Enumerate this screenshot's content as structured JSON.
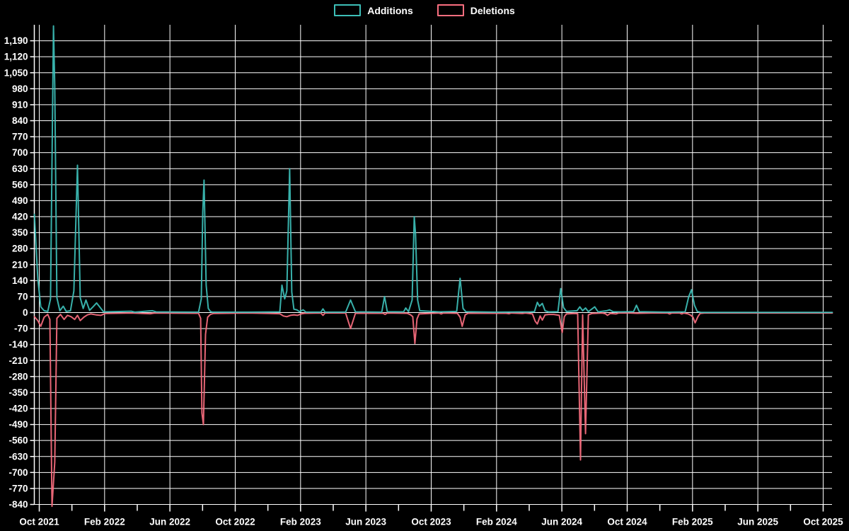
{
  "legend": {
    "items": [
      {
        "label": "Additions",
        "color": "#3dbfb8"
      },
      {
        "label": "Deletions",
        "color": "#fa6e7f"
      }
    ]
  },
  "chart_data": {
    "type": "line",
    "title": "",
    "xlabel": "",
    "ylabel": "",
    "background_color": "#000000",
    "grid": true,
    "grid_color": "#ffffff",
    "text_color": "#ffffff",
    "legend_position": "top-center",
    "x_axis": {
      "unit": "months since Oct 2021",
      "tick_labels": [
        "Oct 2021",
        "Feb 2022",
        "Jun 2022",
        "Oct 2022",
        "Feb 2023",
        "Jun 2023",
        "Oct 2023",
        "Feb 2024",
        "Jun 2024",
        "Oct 2024",
        "Feb 2025",
        "Jun 2025",
        "Oct 2025"
      ],
      "tick_positions": [
        0,
        4,
        8,
        12,
        16,
        20,
        24,
        28,
        32,
        36,
        40,
        44,
        48
      ],
      "minor_tick_positions": [
        2,
        6,
        10,
        14,
        18,
        22,
        26,
        30,
        34,
        38,
        42,
        46
      ],
      "range": [
        -0.32,
        48.56
      ]
    },
    "y_axis": {
      "range": [
        -840,
        1260
      ],
      "tick_min": -840,
      "tick_max": 1190,
      "tick_step": 70
    },
    "series": [
      {
        "name": "Additions",
        "color": "#3dbfb8",
        "points": [
          [
            -0.3,
            430
          ],
          [
            -0.09,
            150
          ],
          [
            0.09,
            25
          ],
          [
            0.3,
            8
          ],
          [
            0.52,
            5
          ],
          [
            0.69,
            60
          ],
          [
            0.87,
            1255
          ],
          [
            0.95,
            990
          ],
          [
            1.08,
            65
          ],
          [
            1.26,
            8
          ],
          [
            1.47,
            28
          ],
          [
            1.65,
            5
          ],
          [
            1.91,
            8
          ],
          [
            2.12,
            95
          ],
          [
            2.34,
            645
          ],
          [
            2.51,
            65
          ],
          [
            2.69,
            18
          ],
          [
            2.86,
            55
          ],
          [
            3.08,
            10
          ],
          [
            3.29,
            25
          ],
          [
            3.51,
            42
          ],
          [
            3.73,
            22
          ],
          [
            3.94,
            3
          ],
          [
            5.63,
            6
          ],
          [
            5.85,
            2
          ],
          [
            6.71,
            7
          ],
          [
            6.93,
            8
          ],
          [
            7.15,
            3
          ],
          [
            9.75,
            2
          ],
          [
            9.92,
            60
          ],
          [
            10.01,
            440
          ],
          [
            10.09,
            580
          ],
          [
            10.22,
            120
          ],
          [
            10.35,
            18
          ],
          [
            10.48,
            5
          ],
          [
            10.61,
            2
          ],
          [
            12.78,
            2
          ],
          [
            14.73,
            3
          ],
          [
            14.86,
            120
          ],
          [
            15.03,
            60
          ],
          [
            15.16,
            95
          ],
          [
            15.33,
            630
          ],
          [
            15.46,
            90
          ],
          [
            15.59,
            15
          ],
          [
            15.77,
            12
          ],
          [
            15.94,
            4
          ],
          [
            16.16,
            12
          ],
          [
            16.33,
            2
          ],
          [
            17.24,
            2
          ],
          [
            17.37,
            16
          ],
          [
            17.5,
            2
          ],
          [
            18.76,
            2
          ],
          [
            19.06,
            55
          ],
          [
            19.36,
            3
          ],
          [
            20.97,
            2
          ],
          [
            21.14,
            70
          ],
          [
            21.31,
            4
          ],
          [
            22.31,
            3
          ],
          [
            22.44,
            20
          ],
          [
            22.61,
            4
          ],
          [
            22.83,
            55
          ],
          [
            22.96,
            420
          ],
          [
            23.04,
            345
          ],
          [
            23.17,
            55
          ],
          [
            23.3,
            8
          ],
          [
            24.48,
            3
          ],
          [
            25.56,
            5
          ],
          [
            25.77,
            150
          ],
          [
            25.95,
            18
          ],
          [
            26.12,
            4
          ],
          [
            27.94,
            2
          ],
          [
            30.11,
            3
          ],
          [
            30.32,
            4
          ],
          [
            30.5,
            45
          ],
          [
            30.63,
            28
          ],
          [
            30.8,
            40
          ],
          [
            30.97,
            8
          ],
          [
            31.19,
            3
          ],
          [
            31.76,
            4
          ],
          [
            31.93,
            105
          ],
          [
            32.1,
            22
          ],
          [
            32.28,
            5
          ],
          [
            32.93,
            8
          ],
          [
            33.1,
            25
          ],
          [
            33.27,
            8
          ],
          [
            33.45,
            20
          ],
          [
            33.62,
            4
          ],
          [
            34.01,
            25
          ],
          [
            34.22,
            3
          ],
          [
            34.75,
            8
          ],
          [
            34.92,
            12
          ],
          [
            35.14,
            4
          ],
          [
            35.61,
            3
          ],
          [
            36.39,
            4
          ],
          [
            36.57,
            32
          ],
          [
            36.74,
            4
          ],
          [
            38.34,
            2
          ],
          [
            39.55,
            3
          ],
          [
            39.77,
            70
          ],
          [
            39.94,
            100
          ],
          [
            40.12,
            32
          ],
          [
            40.29,
            5
          ],
          [
            40.51,
            1
          ],
          [
            48.56,
            1
          ]
        ]
      },
      {
        "name": "Deletions",
        "color": "#fa6e7f",
        "points": [
          [
            -0.3,
            -18
          ],
          [
            -0.09,
            -35
          ],
          [
            0.09,
            -60
          ],
          [
            0.3,
            -20
          ],
          [
            0.52,
            -8
          ],
          [
            0.65,
            -30
          ],
          [
            0.78,
            -848
          ],
          [
            0.95,
            -655
          ],
          [
            1.08,
            -25
          ],
          [
            1.3,
            -8
          ],
          [
            1.52,
            -30
          ],
          [
            1.73,
            -12
          ],
          [
            1.95,
            -18
          ],
          [
            2.17,
            -30
          ],
          [
            2.34,
            -12
          ],
          [
            2.51,
            -35
          ],
          [
            2.73,
            -20
          ],
          [
            2.95,
            -10
          ],
          [
            3.16,
            -6
          ],
          [
            3.47,
            -10
          ],
          [
            3.77,
            -12
          ],
          [
            4.03,
            -4
          ],
          [
            5.63,
            -2
          ],
          [
            6.8,
            -5
          ],
          [
            7.06,
            -2
          ],
          [
            9.75,
            -3
          ],
          [
            9.88,
            -25
          ],
          [
            9.96,
            -440
          ],
          [
            10.05,
            -490
          ],
          [
            10.18,
            -95
          ],
          [
            10.31,
            -20
          ],
          [
            10.48,
            -8
          ],
          [
            10.66,
            -4
          ],
          [
            12.78,
            -2
          ],
          [
            14.73,
            -5
          ],
          [
            14.95,
            -15
          ],
          [
            15.16,
            -18
          ],
          [
            15.38,
            -12
          ],
          [
            15.59,
            -10
          ],
          [
            15.81,
            -12
          ],
          [
            16.03,
            -6
          ],
          [
            16.24,
            -3
          ],
          [
            17.24,
            -2
          ],
          [
            17.37,
            -12
          ],
          [
            17.5,
            -2
          ],
          [
            18.76,
            -2
          ],
          [
            19.06,
            -70
          ],
          [
            19.36,
            -3
          ],
          [
            21.05,
            -3
          ],
          [
            21.18,
            -8
          ],
          [
            21.31,
            -2
          ],
          [
            22.53,
            -3
          ],
          [
            22.74,
            -10
          ],
          [
            22.87,
            -18
          ],
          [
            23.0,
            -135
          ],
          [
            23.13,
            -28
          ],
          [
            23.26,
            -6
          ],
          [
            24.48,
            -2
          ],
          [
            24.61,
            -6
          ],
          [
            24.74,
            -2
          ],
          [
            25.6,
            -3
          ],
          [
            25.77,
            -20
          ],
          [
            25.9,
            -60
          ],
          [
            26.08,
            -10
          ],
          [
            26.25,
            -3
          ],
          [
            28.59,
            -3
          ],
          [
            28.77,
            -5
          ],
          [
            28.9,
            -2
          ],
          [
            29.59,
            -4
          ],
          [
            29.76,
            -2
          ],
          [
            30.2,
            -6
          ],
          [
            30.37,
            -38
          ],
          [
            30.5,
            -50
          ],
          [
            30.67,
            -15
          ],
          [
            30.8,
            -33
          ],
          [
            30.97,
            -10
          ],
          [
            31.19,
            -8
          ],
          [
            31.5,
            -8
          ],
          [
            31.84,
            -12
          ],
          [
            32.02,
            -87
          ],
          [
            32.15,
            -18
          ],
          [
            32.28,
            -6
          ],
          [
            32.8,
            -4
          ],
          [
            32.97,
            -5
          ],
          [
            33.14,
            -645
          ],
          [
            33.27,
            -10
          ],
          [
            33.45,
            -530
          ],
          [
            33.62,
            -10
          ],
          [
            33.84,
            -4
          ],
          [
            34.49,
            -2
          ],
          [
            34.66,
            -5
          ],
          [
            34.79,
            -12
          ],
          [
            34.96,
            -4
          ],
          [
            35.31,
            -6
          ],
          [
            35.48,
            -2
          ],
          [
            36.18,
            -2
          ],
          [
            36.61,
            -3
          ],
          [
            37.48,
            -2
          ],
          [
            38.47,
            -2
          ],
          [
            38.6,
            -6
          ],
          [
            38.73,
            -2
          ],
          [
            39.21,
            -2
          ],
          [
            39.34,
            -6
          ],
          [
            39.47,
            -2
          ],
          [
            39.73,
            -6
          ],
          [
            39.9,
            -12
          ],
          [
            40.03,
            -20
          ],
          [
            40.16,
            -45
          ],
          [
            40.33,
            -18
          ],
          [
            40.46,
            -4
          ],
          [
            40.72,
            -2
          ],
          [
            48.56,
            -2
          ]
        ]
      }
    ]
  }
}
